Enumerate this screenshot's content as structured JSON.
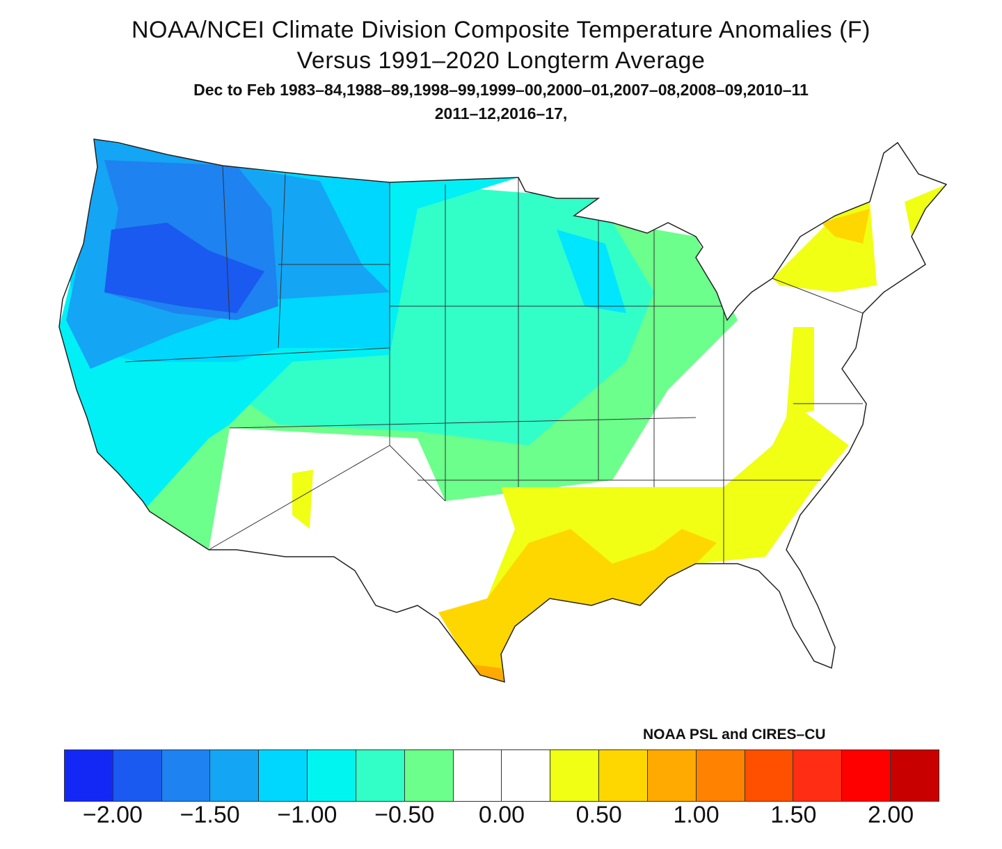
{
  "title": {
    "line1": "NOAA/NCEI Climate Division Composite Temperature Anomalies (F)",
    "line2": "Versus 1991–2020 Longterm Average",
    "line3": "Dec to Feb  1983–84,1988–89,1998–99,1999–00,2000–01,2007–08,2008–09,2010–11",
    "line4": "2011–12,2016–17,"
  },
  "credit": "NOAA PSL and CIRES–CU",
  "colorbar": {
    "colors": [
      "#1428f5",
      "#1a5af0",
      "#1e82f0",
      "#14a5f5",
      "#00d7ff",
      "#00f5f0",
      "#32ffc8",
      "#6cff8c",
      "#ffffff",
      "#ffffff",
      "#f0ff14",
      "#ffd700",
      "#ffaa00",
      "#ff8200",
      "#ff5000",
      "#ff2d14",
      "#ff0000",
      "#c80000"
    ],
    "tick_labels": [
      "−2.00",
      "−1.50",
      "−1.00",
      "−0.50",
      "0.00",
      "0.50",
      "1.00",
      "1.50",
      "2.00"
    ],
    "tick_values": [
      -2.0,
      -1.5,
      -1.0,
      -0.5,
      0.0,
      0.5,
      1.0,
      1.5,
      2.0
    ]
  }
}
